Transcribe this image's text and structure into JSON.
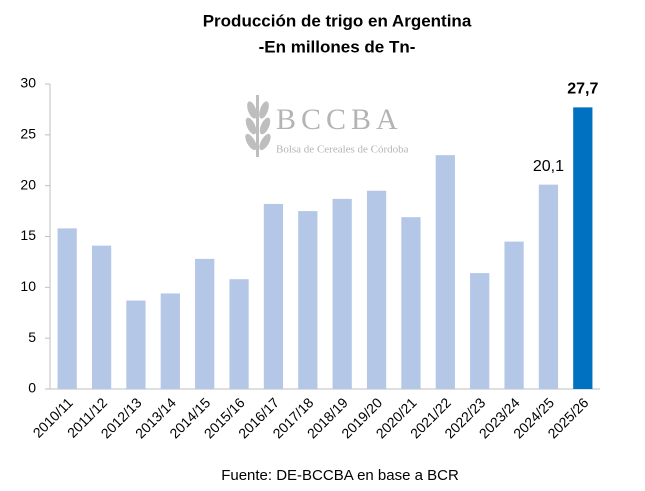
{
  "chart_data": {
    "type": "bar",
    "title": "Producción de trigo en Argentina",
    "subtitle": "-En millones de Tn-",
    "source": "Fuente: DE-BCCBA en base a BCR",
    "logo": {
      "name": "BCCBA",
      "tagline": "Bolsa de Cereales de Córdoba"
    },
    "categories": [
      "2010/11",
      "2011/12",
      "2012/13",
      "2013/14",
      "2014/15",
      "2015/16",
      "2016/17",
      "2017/18",
      "2018/19",
      "2019/20",
      "2020/21",
      "2021/22",
      "2022/23",
      "2023/24",
      "2024/25",
      "2025/26"
    ],
    "values": [
      15.8,
      14.1,
      8.7,
      9.4,
      12.8,
      10.8,
      18.2,
      17.5,
      18.7,
      19.5,
      16.9,
      23.0,
      11.4,
      14.5,
      20.1,
      27.7
    ],
    "value_labels": [
      null,
      null,
      null,
      null,
      null,
      null,
      null,
      null,
      null,
      null,
      null,
      null,
      null,
      null,
      "20,1",
      "27,7"
    ],
    "colors": [
      "#b4c7e7",
      "#b4c7e7",
      "#b4c7e7",
      "#b4c7e7",
      "#b4c7e7",
      "#b4c7e7",
      "#b4c7e7",
      "#b4c7e7",
      "#b4c7e7",
      "#b4c7e7",
      "#b4c7e7",
      "#b4c7e7",
      "#b4c7e7",
      "#b4c7e7",
      "#b4c7e7",
      "#0070c0"
    ],
    "ylim": [
      0,
      30
    ],
    "yticks": [
      0,
      5,
      10,
      15,
      20,
      25,
      30
    ],
    "grid": false
  }
}
